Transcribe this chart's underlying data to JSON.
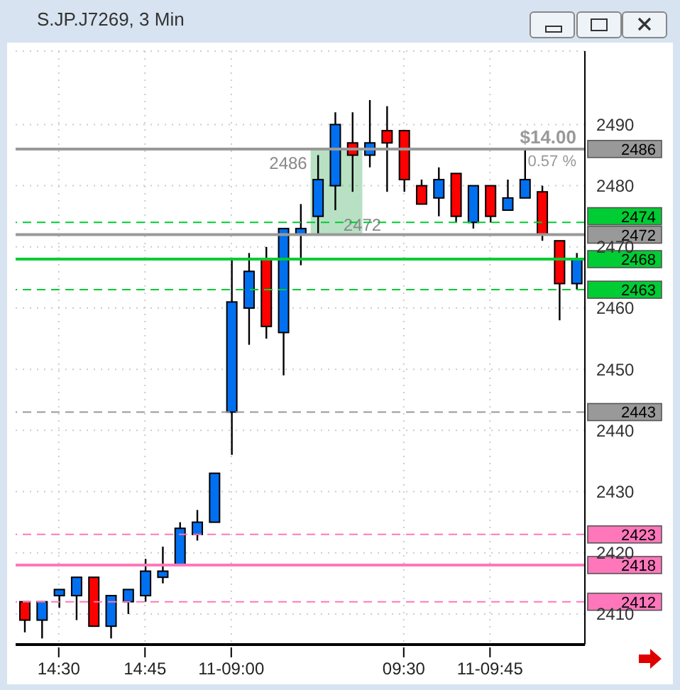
{
  "chart_data": {
    "type": "candlestick",
    "title": "S.JP.J7269, 3 Min",
    "categories": [
      null,
      null,
      "14:30",
      null,
      null,
      null,
      null,
      "14:45",
      null,
      null,
      null,
      null,
      "11-09:00",
      null,
      null,
      null,
      null,
      null,
      null,
      null,
      null,
      null,
      "09:30",
      null,
      null,
      null,
      null,
      "11-09:45",
      null,
      null,
      null,
      null,
      null
    ],
    "ohlc": [
      [
        2412,
        2412,
        2407,
        2409
      ],
      [
        2409,
        2412,
        2406,
        2412
      ],
      [
        2413,
        2414,
        2411,
        2414
      ],
      [
        2413,
        2416,
        2409,
        2416
      ],
      [
        2416,
        2416,
        2408,
        2408
      ],
      [
        2408,
        2413,
        2406,
        2413
      ],
      [
        2412,
        2414,
        2410,
        2414
      ],
      [
        2413,
        2419,
        2412,
        2417
      ],
      [
        2416,
        2421,
        2415,
        2417
      ],
      [
        2418,
        2425,
        2418,
        2424
      ],
      [
        2423,
        2427,
        2422,
        2425
      ],
      [
        2425,
        2433,
        2425,
        2433
      ],
      [
        2443,
        2468,
        2436,
        2461
      ],
      [
        2460,
        2469,
        2454,
        2466
      ],
      [
        2468,
        2470,
        2455,
        2457
      ],
      [
        2456,
        2473,
        2449,
        2473
      ],
      [
        2472,
        2477,
        2467,
        2473
      ],
      [
        2475,
        2485,
        2472,
        2481
      ],
      [
        2480,
        2492,
        2476,
        2490
      ],
      [
        2487,
        2492,
        2479,
        2485
      ],
      [
        2485,
        2494,
        2483,
        2487
      ],
      [
        2489,
        2493,
        2479,
        2487
      ],
      [
        2489,
        2489,
        2479,
        2481
      ],
      [
        2480,
        2481,
        2477,
        2477
      ],
      [
        2478,
        2483,
        2475,
        2481
      ],
      [
        2482,
        2482,
        2474,
        2475
      ],
      [
        2474,
        2480,
        2473,
        2480
      ],
      [
        2480,
        2480,
        2474,
        2475
      ],
      [
        2476,
        2481,
        2476,
        2478
      ],
      [
        2478,
        2486,
        2478,
        2481
      ],
      [
        2479,
        2480,
        2471,
        2472
      ],
      [
        2471,
        2471,
        2458,
        2464
      ],
      [
        2464,
        2469,
        2463,
        2468
      ]
    ],
    "colors": [
      "#ff0000",
      "#0070f0",
      "#0070f0",
      "#0070f0",
      "#ff0000",
      "#0070f0",
      "#0070f0",
      "#0070f0",
      "#0070f0",
      "#0070f0",
      "#0070f0",
      "#0070f0",
      "#0070f0",
      "#0070f0",
      "#ff0000",
      "#0070f0",
      "#0070f0",
      "#0070f0",
      "#0070f0",
      "#ff0000",
      "#0070f0",
      "#ff0000",
      "#ff0000",
      "#ff0000",
      "#0070f0",
      "#ff0000",
      "#0070f0",
      "#ff0000",
      "#0070f0",
      "#0070f0",
      "#ff0000",
      "#ff0000",
      "#0070f0"
    ],
    "ylim": [
      2405,
      2502
    ],
    "yticks": [
      2410,
      2420,
      2430,
      2440,
      2450,
      2460,
      2470,
      2480,
      2490
    ],
    "grid": true,
    "ref_lines": [
      {
        "axis": "y",
        "value": 2486,
        "label": "2486",
        "color": "#999999",
        "line_style": "solid"
      },
      {
        "axis": "y",
        "value": 2474,
        "label": "2474",
        "color": "#00cc33",
        "line_style": "dashed"
      },
      {
        "axis": "y",
        "value": 2472,
        "label": "2472",
        "color": "#999999",
        "line_style": "solid"
      },
      {
        "axis": "y",
        "value": 2468,
        "label": "2468",
        "color": "#00cc33",
        "line_style": "solid"
      },
      {
        "axis": "y",
        "value": 2463,
        "label": "2463",
        "color": "#00cc33",
        "line_style": "dashed"
      },
      {
        "axis": "y",
        "value": 2443,
        "label": "2443",
        "color": "#999999",
        "line_style": "dashed"
      },
      {
        "axis": "y",
        "value": 2423,
        "label": "2423",
        "color": "#ff77bb",
        "line_style": "dashed"
      },
      {
        "axis": "y",
        "value": 2418,
        "label": "2418",
        "color": "#ff77bb",
        "line_style": "solid"
      },
      {
        "axis": "y",
        "value": 2412,
        "label": "2412",
        "color": "#ff77bb",
        "line_style": "dashed"
      }
    ],
    "annotations": [
      "$14.00",
      "0.57 %",
      "2486",
      "2472"
    ]
  }
}
